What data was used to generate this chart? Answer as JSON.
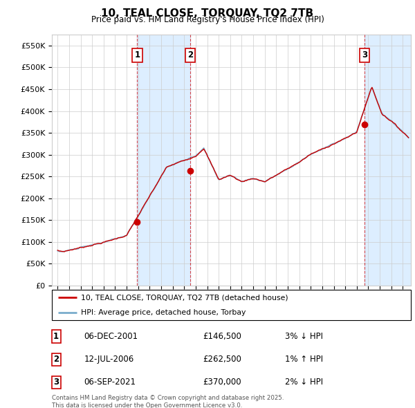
{
  "title": "10, TEAL CLOSE, TORQUAY, TQ2 7TB",
  "subtitle": "Price paid vs. HM Land Registry's House Price Index (HPI)",
  "ylabel_ticks": [
    "£0",
    "£50K",
    "£100K",
    "£150K",
    "£200K",
    "£250K",
    "£300K",
    "£350K",
    "£400K",
    "£450K",
    "£500K",
    "£550K"
  ],
  "ytick_values": [
    0,
    50000,
    100000,
    150000,
    200000,
    250000,
    300000,
    350000,
    400000,
    450000,
    500000,
    550000
  ],
  "ylim": [
    0,
    575000
  ],
  "xlim_start": 1994.5,
  "xlim_end": 2025.7,
  "sale_dates_num": [
    2001.92,
    2006.53,
    2021.68
  ],
  "sale_prices": [
    146500,
    262500,
    370000
  ],
  "sale_labels": [
    "1",
    "2",
    "3"
  ],
  "legend_line1": "10, TEAL CLOSE, TORQUAY, TQ2 7TB (detached house)",
  "legend_line2": "HPI: Average price, detached house, Torbay",
  "table_rows": [
    {
      "label": "1",
      "date": "06-DEC-2001",
      "price": "£146,500",
      "change": "3% ↓ HPI"
    },
    {
      "label": "2",
      "date": "12-JUL-2006",
      "price": "£262,500",
      "change": "1% ↑ HPI"
    },
    {
      "label": "3",
      "date": "06-SEP-2021",
      "price": "£370,000",
      "change": "2% ↓ HPI"
    }
  ],
  "footnote": "Contains HM Land Registry data © Crown copyright and database right 2025.\nThis data is licensed under the Open Government Licence v3.0.",
  "red_color": "#cc0000",
  "blue_color": "#7aadcc",
  "shade_color": "#ddeeff",
  "grid_color": "#cccccc",
  "bg_color": "#ffffff"
}
